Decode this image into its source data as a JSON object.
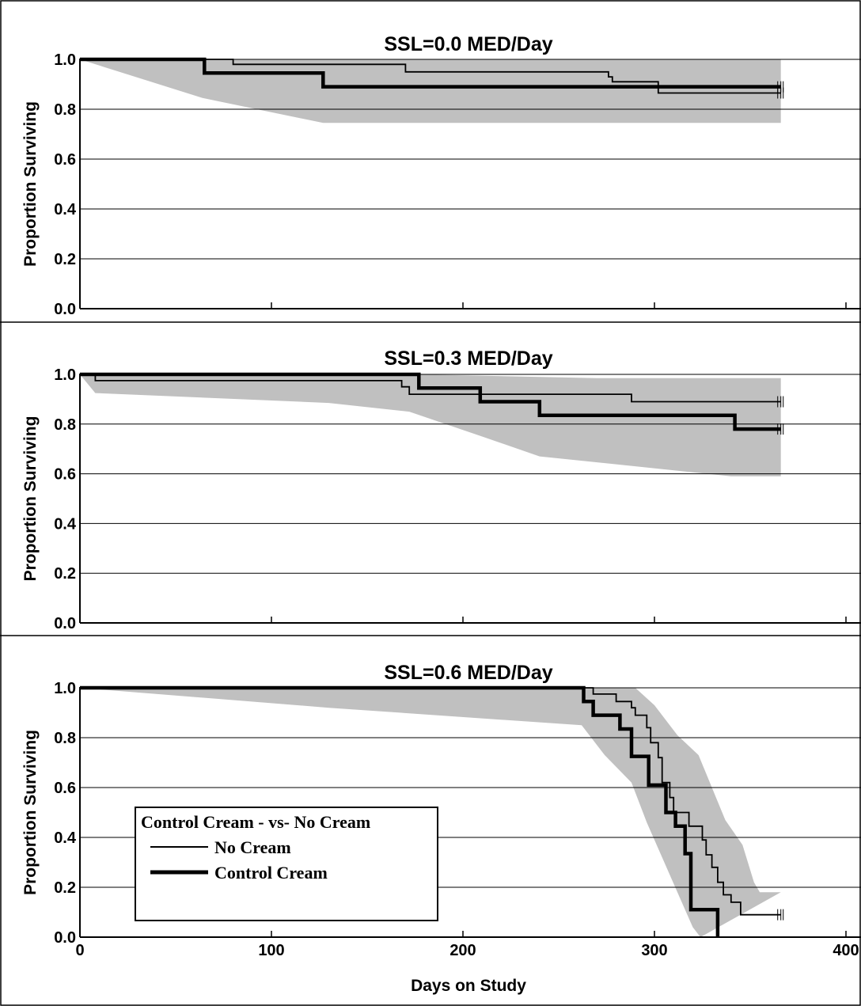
{
  "chart_data": [
    {
      "type": "line",
      "title": "SSL=0.0 MED/Day",
      "ylabel": "Proportion Surviving",
      "xlabel": "",
      "xlim": [
        0,
        400
      ],
      "ylim": [
        0,
        1
      ],
      "x_ticks": [
        "0",
        "100",
        "200",
        "300",
        "400"
      ],
      "y_ticks": [
        "0.0",
        "0.2",
        "0.4",
        "0.6",
        "0.8",
        "1.0"
      ],
      "grid": true,
      "band": {
        "upper": [
          [
            0,
            1.0
          ],
          [
            366,
            1.0
          ]
        ],
        "lower": [
          [
            0,
            1.0
          ],
          [
            64,
            0.845
          ],
          [
            127,
            0.745
          ],
          [
            366,
            0.745
          ]
        ]
      },
      "series": [
        {
          "name": "No Cream",
          "style": "thin",
          "values": [
            [
              0,
              1.0
            ],
            [
              80,
              1.0
            ],
            [
              80,
              0.98
            ],
            [
              170,
              0.98
            ],
            [
              170,
              0.95
            ],
            [
              276,
              0.95
            ],
            [
              276,
              0.93
            ],
            [
              278,
              0.93
            ],
            [
              278,
              0.91
            ],
            [
              302,
              0.91
            ],
            [
              302,
              0.865
            ],
            [
              366,
              0.865
            ]
          ]
        },
        {
          "name": "Control Cream",
          "style": "thick",
          "values": [
            [
              0,
              1.0
            ],
            [
              65,
              1.0
            ],
            [
              65,
              0.945
            ],
            [
              127,
              0.945
            ],
            [
              127,
              0.89
            ],
            [
              366,
              0.89
            ]
          ]
        }
      ]
    },
    {
      "type": "line",
      "title": "SSL=0.3 MED/Day",
      "ylabel": "Proportion Surviving",
      "xlabel": "",
      "xlim": [
        0,
        400
      ],
      "ylim": [
        0,
        1
      ],
      "x_ticks": [
        "0",
        "100",
        "200",
        "300",
        "400"
      ],
      "y_ticks": [
        "0.0",
        "0.2",
        "0.4",
        "0.6",
        "0.8",
        "1.0"
      ],
      "grid": true,
      "band": {
        "upper": [
          [
            0,
            1.0
          ],
          [
            176,
            1.0
          ],
          [
            270,
            0.985
          ],
          [
            366,
            0.985
          ]
        ],
        "lower": [
          [
            0,
            1.0
          ],
          [
            8,
            0.925
          ],
          [
            130,
            0.885
          ],
          [
            172,
            0.85
          ],
          [
            210,
            0.75
          ],
          [
            240,
            0.67
          ],
          [
            340,
            0.59
          ],
          [
            366,
            0.59
          ]
        ]
      },
      "series": [
        {
          "name": "No Cream",
          "style": "thin",
          "values": [
            [
              0,
              1.0
            ],
            [
              8,
              1.0
            ],
            [
              8,
              0.975
            ],
            [
              168,
              0.975
            ],
            [
              168,
              0.95
            ],
            [
              172,
              0.95
            ],
            [
              172,
              0.92
            ],
            [
              288,
              0.92
            ],
            [
              288,
              0.89
            ],
            [
              366,
              0.89
            ]
          ]
        },
        {
          "name": "Control Cream",
          "style": "thick",
          "values": [
            [
              0,
              1.0
            ],
            [
              177,
              1.0
            ],
            [
              177,
              0.945
            ],
            [
              209,
              0.945
            ],
            [
              209,
              0.89
            ],
            [
              240,
              0.89
            ],
            [
              240,
              0.835
            ],
            [
              342,
              0.835
            ],
            [
              342,
              0.78
            ],
            [
              366,
              0.78
            ]
          ]
        }
      ]
    },
    {
      "type": "line",
      "title": "SSL=0.6 MED/Day",
      "ylabel": "Proportion Surviving",
      "xlabel": "Days on Study",
      "xlim": [
        0,
        400
      ],
      "ylim": [
        0,
        1
      ],
      "x_ticks": [
        "0",
        "100",
        "200",
        "300",
        "400"
      ],
      "y_ticks": [
        "0.0",
        "0.2",
        "0.4",
        "0.6",
        "0.8",
        "1.0"
      ],
      "grid": true,
      "legend": {
        "title": "Control Cream - vs- No Cream",
        "placement": "lower-left",
        "entries": [
          {
            "label": "No Cream",
            "style": "thin"
          },
          {
            "label": "Control Cream",
            "style": "thick"
          }
        ]
      },
      "band": {
        "upper": [
          [
            0,
            1.0
          ],
          [
            290,
            1.0
          ],
          [
            300,
            0.93
          ],
          [
            312,
            0.81
          ],
          [
            323,
            0.73
          ],
          [
            330,
            0.6
          ],
          [
            337,
            0.47
          ],
          [
            346,
            0.37
          ],
          [
            352,
            0.22
          ],
          [
            355,
            0.18
          ],
          [
            366,
            0.18
          ]
        ],
        "lower": [
          [
            0,
            1.0
          ],
          [
            130,
            0.92
          ],
          [
            262,
            0.85
          ],
          [
            274,
            0.73
          ],
          [
            288,
            0.62
          ],
          [
            296,
            0.46
          ],
          [
            304,
            0.32
          ],
          [
            312,
            0.18
          ],
          [
            320,
            0.04
          ],
          [
            324,
            0.0
          ]
        ]
      },
      "series": [
        {
          "name": "No Cream",
          "style": "thin",
          "values": [
            [
              0,
              1.0
            ],
            [
              268,
              1.0
            ],
            [
              268,
              0.975
            ],
            [
              280,
              0.975
            ],
            [
              280,
              0.945
            ],
            [
              288,
              0.945
            ],
            [
              288,
              0.92
            ],
            [
              290,
              0.92
            ],
            [
              290,
              0.89
            ],
            [
              296,
              0.89
            ],
            [
              296,
              0.84
            ],
            [
              298,
              0.84
            ],
            [
              298,
              0.78
            ],
            [
              302,
              0.78
            ],
            [
              302,
              0.72
            ],
            [
              304,
              0.72
            ],
            [
              304,
              0.62
            ],
            [
              308,
              0.62
            ],
            [
              308,
              0.56
            ],
            [
              310,
              0.56
            ],
            [
              310,
              0.5
            ],
            [
              318,
              0.5
            ],
            [
              318,
              0.445
            ],
            [
              325,
              0.445
            ],
            [
              325,
              0.39
            ],
            [
              327,
              0.39
            ],
            [
              327,
              0.33
            ],
            [
              330,
              0.33
            ],
            [
              330,
              0.28
            ],
            [
              333,
              0.28
            ],
            [
              333,
              0.22
            ],
            [
              336,
              0.22
            ],
            [
              336,
              0.17
            ],
            [
              340,
              0.17
            ],
            [
              340,
              0.14
            ],
            [
              345,
              0.14
            ],
            [
              345,
              0.09
            ],
            [
              366,
              0.09
            ]
          ]
        },
        {
          "name": "Control Cream",
          "style": "thick",
          "values": [
            [
              0,
              1.0
            ],
            [
              263,
              1.0
            ],
            [
              263,
              0.945
            ],
            [
              268,
              0.945
            ],
            [
              268,
              0.89
            ],
            [
              282,
              0.89
            ],
            [
              282,
              0.835
            ],
            [
              288,
              0.835
            ],
            [
              288,
              0.725
            ],
            [
              297,
              0.725
            ],
            [
              297,
              0.61
            ],
            [
              306,
              0.61
            ],
            [
              306,
              0.5
            ],
            [
              311,
              0.5
            ],
            [
              311,
              0.445
            ],
            [
              316,
              0.445
            ],
            [
              316,
              0.335
            ],
            [
              319,
              0.335
            ],
            [
              319,
              0.11
            ],
            [
              333,
              0.11
            ],
            [
              333,
              0.0
            ]
          ]
        }
      ]
    }
  ]
}
